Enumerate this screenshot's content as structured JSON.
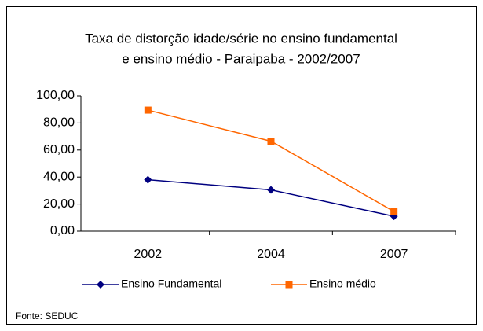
{
  "chart_data": {
    "type": "line",
    "title": [
      "Taxa de distorção idade/série no ensino fundamental",
      "e ensino médio - Paraipaba  -  2002/2007"
    ],
    "categories": [
      "2002",
      "2004",
      "2007"
    ],
    "series": [
      {
        "name": "Ensino Fundamental",
        "color": "#000080",
        "marker": "diamond",
        "values": [
          38,
          30.5,
          11
        ]
      },
      {
        "name": "Ensino médio",
        "color": "#ff6600",
        "marker": "square",
        "values": [
          89.5,
          66.5,
          14.5
        ]
      }
    ],
    "ylim": [
      0,
      100
    ],
    "yticks": [
      {
        "value": 0,
        "label": "0,00"
      },
      {
        "value": 20,
        "label": "20,00"
      },
      {
        "value": 40,
        "label": "40,00"
      },
      {
        "value": 60,
        "label": "60,00"
      },
      {
        "value": 80,
        "label": "80,00"
      },
      {
        "value": 100,
        "label": "100,00"
      }
    ],
    "legend": "bottom",
    "source": "Fonte: SEDUC"
  }
}
